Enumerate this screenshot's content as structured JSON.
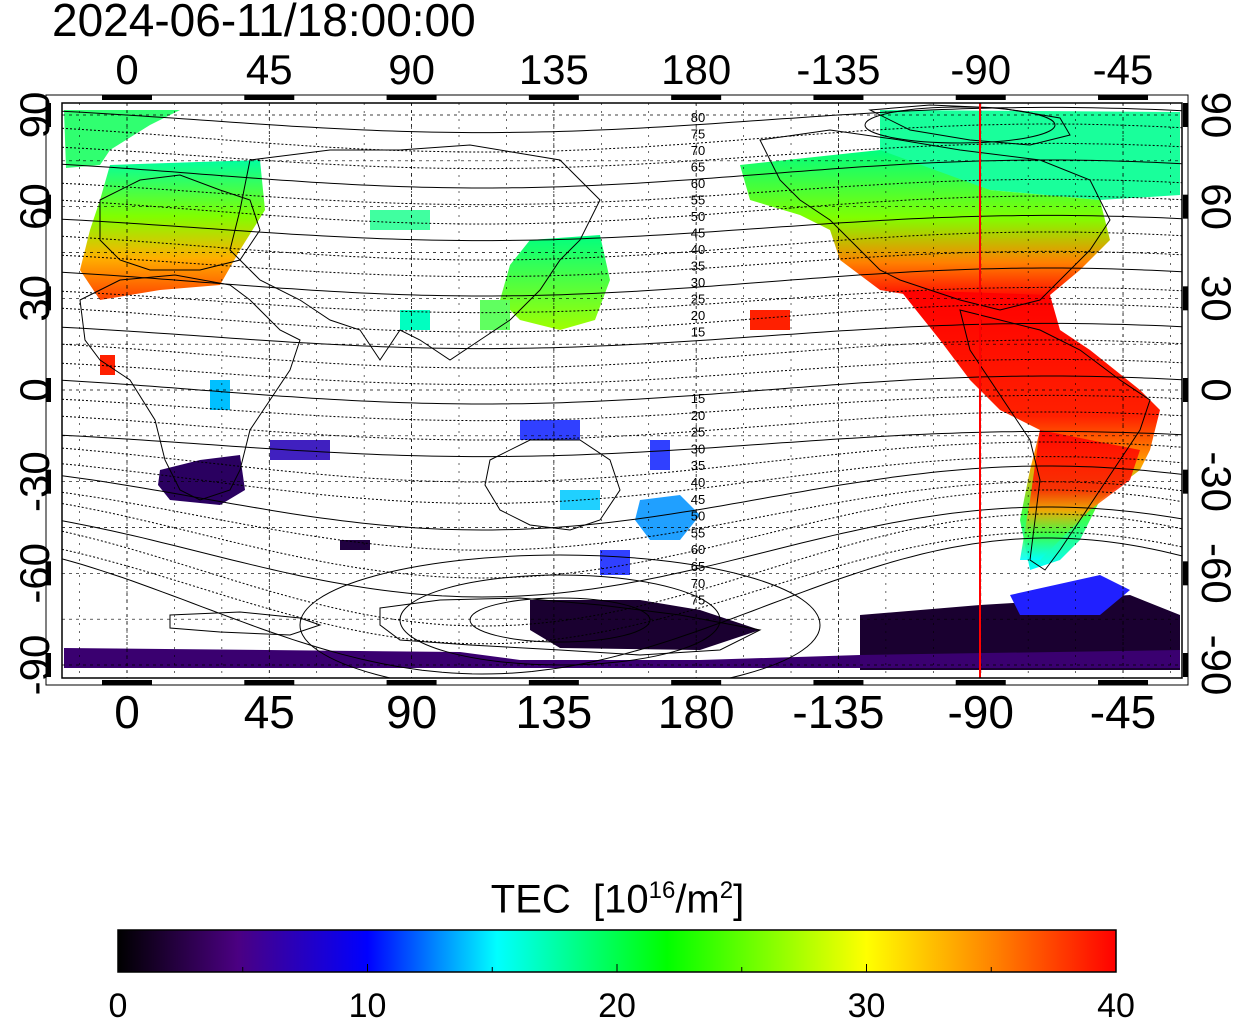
{
  "timestamp": "2024-06-11/18:00:00",
  "map": {
    "lon_ticks": [
      "0",
      "45",
      "90",
      "135",
      "180",
      "-135",
      "-90",
      "-45"
    ],
    "lat_ticks_left": [
      "90",
      "60",
      "30",
      "0",
      "-30",
      "-60",
      "-90"
    ],
    "lat_ticks_right": [
      "90",
      "60",
      "30",
      "0",
      "-30",
      "-60",
      "-90"
    ],
    "contour_labels_north": [
      "80",
      "75",
      "70",
      "65",
      "60",
      "55",
      "50",
      "45",
      "40",
      "35",
      "30",
      "25",
      "20",
      "15"
    ],
    "contour_labels_south": [
      "15",
      "20",
      "25",
      "30",
      "35",
      "40",
      "45",
      "50",
      "55",
      "60",
      "65",
      "70",
      "75"
    ],
    "marker_line_lon": "-90",
    "marker_line_color": "#ff0000"
  },
  "colorbar": {
    "title": "TEC",
    "unit_base": "10",
    "unit_exp": "16",
    "unit_div": "/m",
    "unit_exp2": "2",
    "ticks": [
      "0",
      "10",
      "20",
      "30",
      "40"
    ],
    "min": 0,
    "max": 40,
    "colors": [
      "#000000",
      "#4b0082",
      "#0000ff",
      "#00ffff",
      "#00ff00",
      "#ffff00",
      "#ff0000"
    ]
  }
}
